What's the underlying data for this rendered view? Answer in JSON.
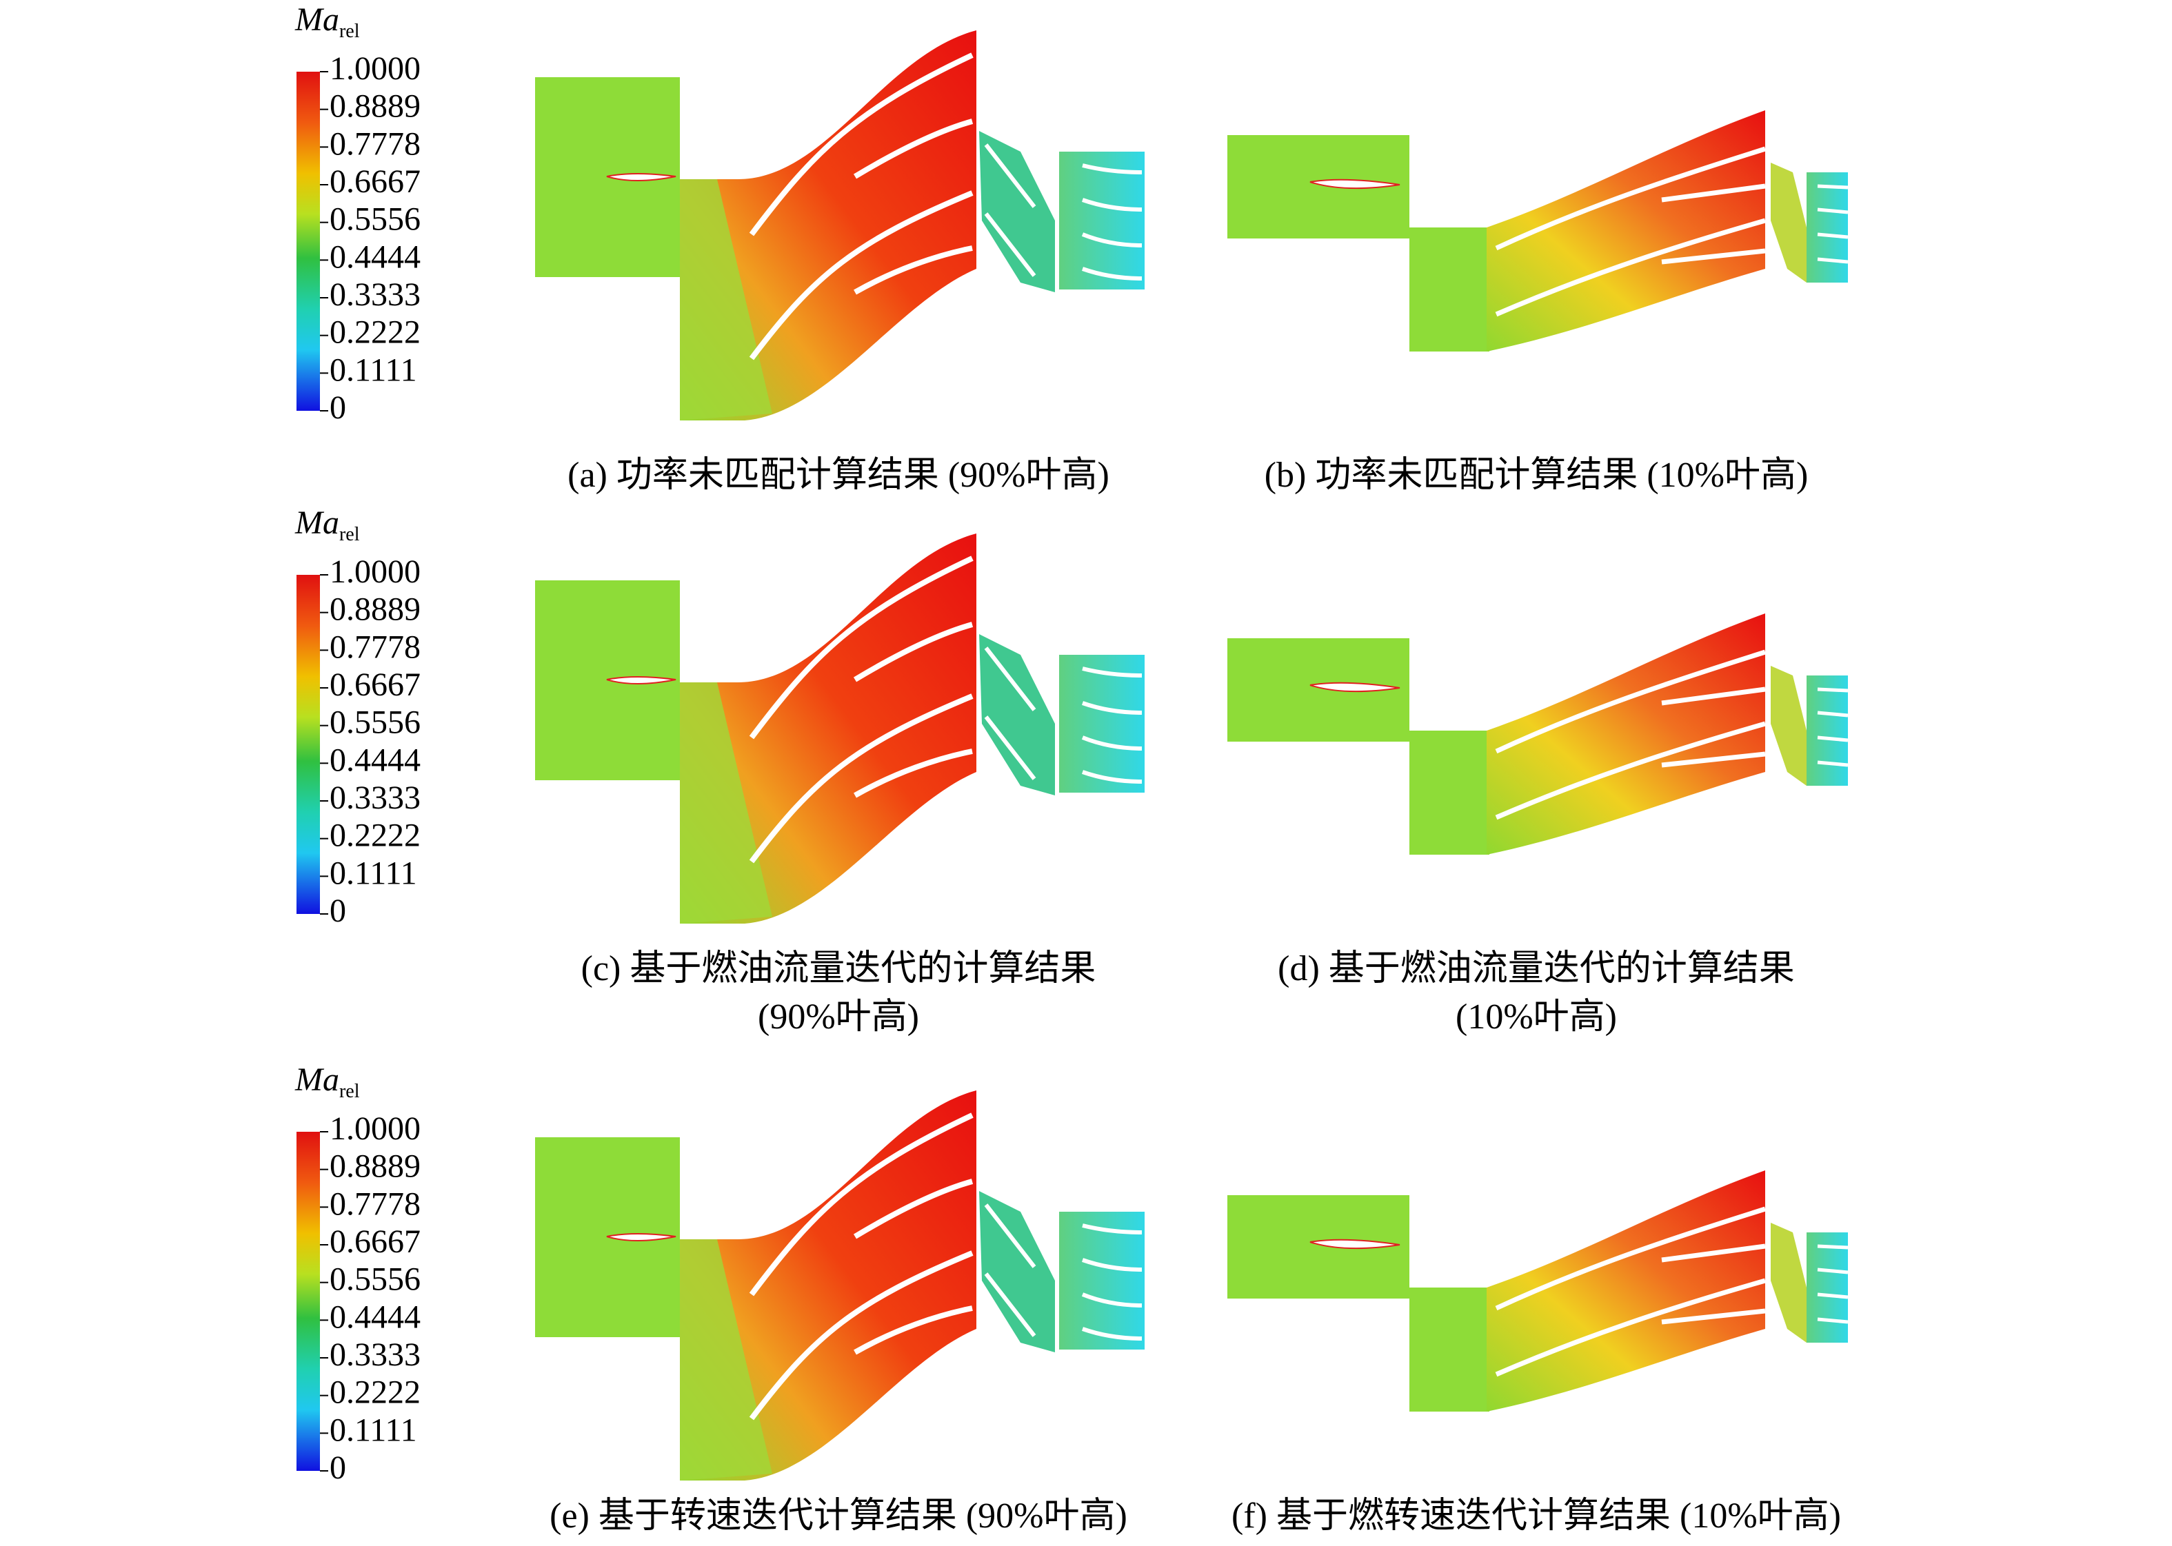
{
  "rows": [
    {
      "colorbar": {
        "label": "Ma",
        "label_sub": "rel",
        "ticks": [
          "1.0000",
          "0.8889",
          "0.7778",
          "0.6667",
          "0.5556",
          "0.4444",
          "0.3333",
          "0.2222",
          "0.1111",
          "0"
        ]
      },
      "panels": [
        {
          "caption": [
            "(a) 功率未匹配计算结果 (90%叶高)"
          ]
        },
        {
          "caption": [
            "(b) 功率未匹配计算结果 (10%叶高)"
          ]
        }
      ]
    },
    {
      "colorbar": {
        "label": "Ma",
        "label_sub": "rel",
        "ticks": [
          "1.0000",
          "0.8889",
          "0.7778",
          "0.6667",
          "0.5556",
          "0.4444",
          "0.3333",
          "0.2222",
          "0.1111",
          "0"
        ]
      },
      "panels": [
        {
          "caption": [
            "(c) 基于燃油流量迭代的计算结果",
            "(90%叶高)"
          ]
        },
        {
          "caption": [
            "(d) 基于燃油流量迭代的计算结果",
            "(10%叶高)"
          ]
        }
      ]
    },
    {
      "colorbar": {
        "label": "Ma",
        "label_sub": "rel",
        "ticks": [
          "1.0000",
          "0.8889",
          "0.7778",
          "0.6667",
          "0.5556",
          "0.4444",
          "0.3333",
          "0.2222",
          "0.1111",
          "0"
        ]
      },
      "panels": [
        {
          "caption": [
            "(e) 基于转速迭代计算结果 (90%叶高)"
          ]
        },
        {
          "caption": [
            "(f) 基于燃转速迭代计算结果 (10%叶高)"
          ]
        }
      ]
    }
  ]
}
